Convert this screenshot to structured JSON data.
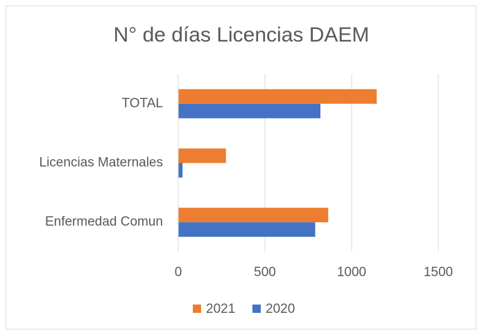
{
  "chart_data": {
    "type": "hbar",
    "title": "N° de días Licencias DAEM",
    "categories": [
      "Enfermedad Comun",
      "Licencias Maternales",
      "TOTAL"
    ],
    "series": [
      {
        "name": "2021",
        "color": "#ed7d31",
        "values": [
          865,
          275,
          1145
        ]
      },
      {
        "name": "2020",
        "color": "#4472c4",
        "values": [
          790,
          25,
          820
        ]
      }
    ],
    "xlim": [
      0,
      1500
    ],
    "xticks": [
      0,
      500,
      1000,
      1500
    ],
    "grid": true,
    "legend": "bottom"
  }
}
